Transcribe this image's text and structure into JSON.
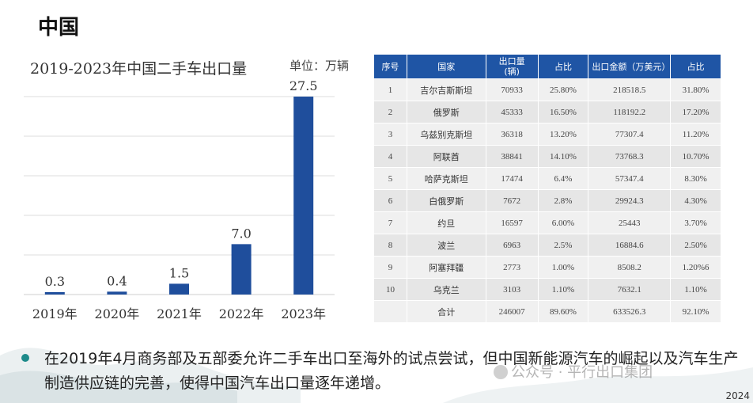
{
  "page_title": "中国",
  "chart_data": {
    "type": "bar",
    "title": "2019-2023年中国二手车出口量",
    "unit": "单位：万辆",
    "categories": [
      "2019年",
      "2020年",
      "2021年",
      "2022年",
      "2023年"
    ],
    "values": [
      0.3,
      0.4,
      1.5,
      7.0,
      27.5
    ],
    "value_labels": [
      "0.3",
      "0.4",
      "1.5",
      "7.0",
      "27.5"
    ],
    "ylim": [
      0,
      27.5
    ],
    "grid": true,
    "bar_color": "#1f4e9c"
  },
  "table": {
    "headers": [
      "序号",
      "国家",
      "出口量\n(辆)",
      "占比",
      "出口金额（万美元）",
      "占比"
    ],
    "rows": [
      [
        "1",
        "吉尔吉斯斯坦",
        "70933",
        "25.80%",
        "218518.5",
        "31.80%"
      ],
      [
        "2",
        "俄罗斯",
        "45333",
        "16.50%",
        "118192.2",
        "17.20%"
      ],
      [
        "3",
        "乌兹别克斯坦",
        "36318",
        "13.20%",
        "77307.4",
        "11.20%"
      ],
      [
        "4",
        "阿联酋",
        "38841",
        "14.10%",
        "73768.3",
        "10.70%"
      ],
      [
        "5",
        "哈萨克斯坦",
        "17474",
        "6.4%",
        "57347.4",
        "8.30%"
      ],
      [
        "6",
        "白俄罗斯",
        "7672",
        "2.8%",
        "29924.3",
        "4.30%"
      ],
      [
        "7",
        "约旦",
        "16597",
        "6.00%",
        "25443",
        "3.70%"
      ],
      [
        "8",
        "波兰",
        "6963",
        "2.5%",
        "16884.6",
        "2.50%"
      ],
      [
        "9",
        "阿塞拜疆",
        "2773",
        "1.00%",
        "8508.2",
        "1.20%6"
      ],
      [
        "10",
        "乌克兰",
        "3103",
        "1.10%",
        "7632.1",
        "1.10%"
      ],
      [
        "",
        "合计",
        "246007",
        "89.60%",
        "633526.3",
        "92.10%"
      ]
    ],
    "header_color": "#1f55a5"
  },
  "bullet": {
    "text": "在2019年4月商务部及五部委允许二手车出口至海外的试点尝试，但中国新能源汽车的崛起以及汽车生产制造供应链的完善，使得中国汽车出口量逐年递增。"
  },
  "watermark": "公众号 · 平行出口集团",
  "footer": "2024"
}
